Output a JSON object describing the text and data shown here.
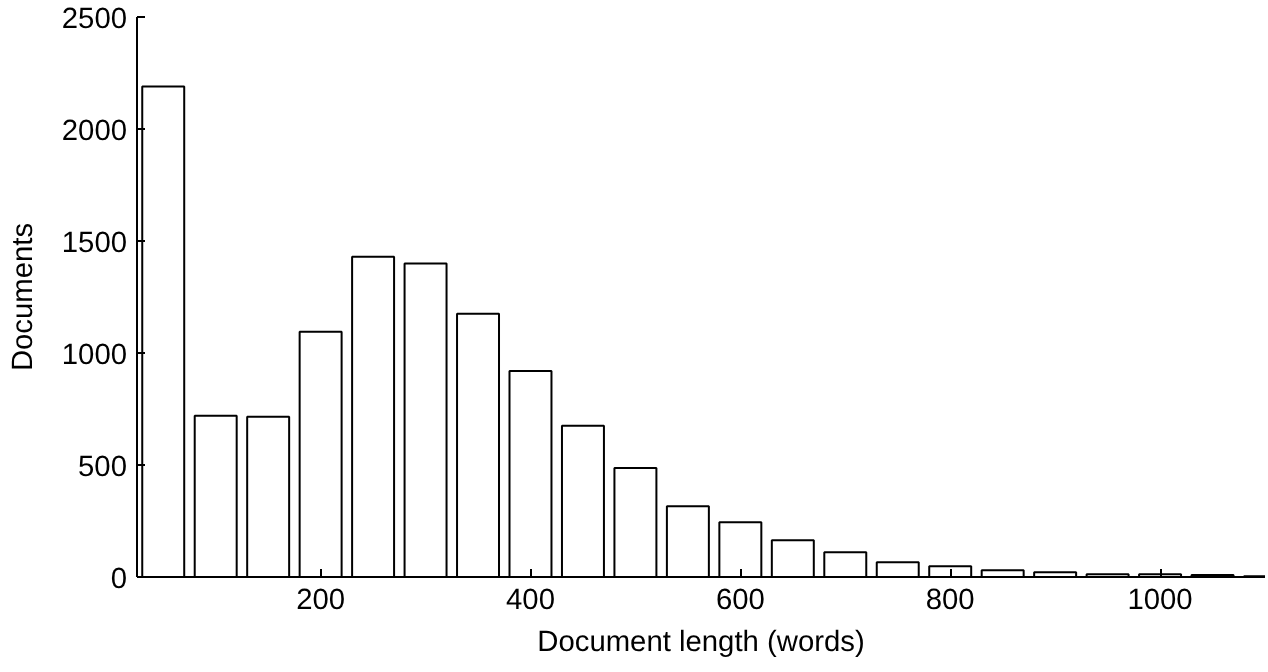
{
  "chart_data": {
    "type": "bar",
    "xlabel": "Document length (words)",
    "ylabel": "Documents",
    "x": [
      50,
      100,
      150,
      200,
      250,
      300,
      350,
      400,
      450,
      500,
      550,
      600,
      650,
      700,
      750,
      800,
      850,
      900,
      950,
      1000,
      1050,
      1100
    ],
    "values": [
      2190,
      720,
      715,
      1095,
      1430,
      1400,
      1175,
      920,
      675,
      487,
      316,
      244,
      164,
      110,
      66,
      48,
      30,
      21,
      12,
      12,
      9,
      3
    ],
    "color": "#ffffff",
    "xlim": [
      25,
      1100
    ],
    "xticks": [
      200,
      400,
      600,
      800,
      1000
    ],
    "ylim": [
      0,
      2500
    ],
    "yticks": [
      0,
      500,
      1000,
      1500,
      2000,
      2500
    ],
    "grid": false
  }
}
